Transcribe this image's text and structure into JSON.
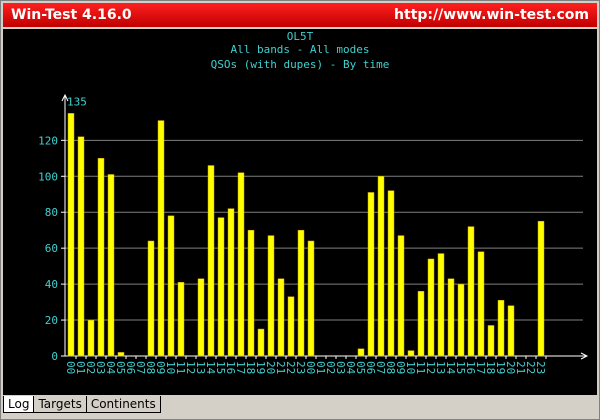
{
  "window": {
    "title": "Win-Test 4.16.0",
    "url": "http://www.win-test.com",
    "tabs": [
      "Log",
      "Targets",
      "Continents"
    ]
  },
  "chart_data": {
    "type": "bar",
    "title": "OL5T",
    "subtitle": "All bands - All modes",
    "subtitle2": "QSOs (with dupes) - By time",
    "categories": [
      "00",
      "01",
      "02",
      "03",
      "04",
      "05",
      "06",
      "07",
      "08",
      "09",
      "10",
      "11",
      "12",
      "13",
      "14",
      "15",
      "16",
      "17",
      "18",
      "19",
      "20",
      "21",
      "22",
      "23",
      "00",
      "01",
      "02",
      "03",
      "04",
      "05",
      "06",
      "07",
      "08",
      "09",
      "10",
      "11",
      "12",
      "13",
      "14",
      "15",
      "16",
      "17",
      "18",
      "19",
      "20",
      "21",
      "22",
      "23"
    ],
    "values": [
      135,
      122,
      20,
      110,
      101,
      2,
      0,
      0,
      64,
      131,
      78,
      41,
      0,
      43,
      106,
      77,
      82,
      102,
      70,
      15,
      67,
      43,
      33,
      70,
      64,
      0,
      0,
      0,
      0,
      4,
      91,
      100,
      92,
      67,
      3,
      36,
      54,
      57,
      43,
      40,
      72,
      58,
      17,
      31,
      28,
      0,
      0,
      75
    ],
    "color": "#ffff00",
    "ylim": [
      0,
      143
    ],
    "yticks": [
      0,
      20,
      40,
      60,
      80,
      100,
      120
    ],
    "grid": true
  }
}
